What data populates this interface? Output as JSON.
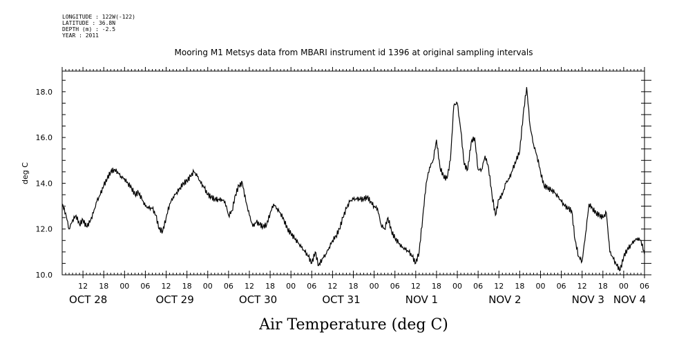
{
  "metadata": {
    "longitude": "LONGITUDE : 122W(-122)",
    "latitude": "LATITUDE : 36.8N",
    "depth": "DEPTH (m) : -2.5",
    "year": "YEAR : 2011"
  },
  "chart_data": {
    "type": "line",
    "title": "Mooring M1 Metsys data from MBARI instrument id 1396 at original sampling intervals",
    "xlabel": "Air Temperature (deg C)",
    "ylabel": "deg C",
    "ylim": [
      10.0,
      18.9
    ],
    "xlim_hours": [
      0,
      168
    ],
    "x_unit": "hours since 2011-10-27 06:00",
    "y_ticks": [
      "10.0",
      "12.0",
      "14.0",
      "16.0",
      "18.0"
    ],
    "y_tick_values": [
      10,
      12,
      14,
      16,
      18
    ],
    "x_hour_ticks": [
      {
        "h": 6,
        "label": "12"
      },
      {
        "h": 12,
        "label": "18"
      },
      {
        "h": 18,
        "label": "00"
      },
      {
        "h": 24,
        "label": "06"
      },
      {
        "h": 30,
        "label": "12"
      },
      {
        "h": 36,
        "label": "18"
      },
      {
        "h": 42,
        "label": "00"
      },
      {
        "h": 48,
        "label": "06"
      },
      {
        "h": 54,
        "label": "12"
      },
      {
        "h": 60,
        "label": "18"
      },
      {
        "h": 66,
        "label": "00"
      },
      {
        "h": 72,
        "label": "06"
      },
      {
        "h": 78,
        "label": "12"
      },
      {
        "h": 84,
        "label": "18"
      },
      {
        "h": 90,
        "label": "00"
      },
      {
        "h": 96,
        "label": "06"
      },
      {
        "h": 102,
        "label": "12"
      },
      {
        "h": 108,
        "label": "18"
      },
      {
        "h": 114,
        "label": "00"
      },
      {
        "h": 120,
        "label": "06"
      },
      {
        "h": 126,
        "label": "12"
      },
      {
        "h": 132,
        "label": "18"
      },
      {
        "h": 138,
        "label": "00"
      },
      {
        "h": 144,
        "label": "06"
      },
      {
        "h": 150,
        "label": "12"
      },
      {
        "h": 156,
        "label": "18"
      },
      {
        "h": 162,
        "label": "00"
      },
      {
        "h": 168,
        "label": "06"
      }
    ],
    "x_day_labels": [
      {
        "h": 2,
        "label": "OCT 28"
      },
      {
        "h": 27,
        "label": "OCT 29"
      },
      {
        "h": 51,
        "label": "OCT 30"
      },
      {
        "h": 75,
        "label": "OCT 31"
      },
      {
        "h": 99,
        "label": "NOV  1"
      },
      {
        "h": 123,
        "label": "NOV  2"
      },
      {
        "h": 147,
        "label": "NOV  3"
      },
      {
        "h": 159,
        "label": "NOV  4"
      }
    ],
    "series": [
      {
        "name": "Air Temperature",
        "x": [
          0,
          1,
          2,
          3,
          4,
          5,
          6,
          7,
          8,
          9,
          10,
          11,
          12,
          13,
          14,
          15,
          16,
          17,
          18,
          19,
          20,
          21,
          22,
          23,
          24,
          25,
          26,
          27,
          28,
          29,
          30,
          31,
          32,
          33,
          34,
          35,
          36,
          37,
          38,
          39,
          40,
          41,
          42,
          43,
          44,
          45,
          46,
          47,
          48,
          49,
          50,
          51,
          52,
          53,
          54,
          55,
          56,
          57,
          58,
          59,
          60,
          61,
          62,
          63,
          64,
          65,
          66,
          67,
          68,
          69,
          70,
          71,
          72,
          73,
          74,
          75,
          76,
          77,
          78,
          79,
          80,
          81,
          82,
          83,
          84,
          85,
          86,
          87,
          88,
          89,
          90,
          91,
          92,
          93,
          94,
          95,
          96,
          97,
          98,
          99,
          100,
          101,
          102,
          103,
          104,
          105,
          106,
          107,
          108,
          109,
          110,
          111,
          112,
          113,
          114,
          115,
          116,
          117,
          118,
          119,
          120,
          121,
          122,
          123,
          124,
          125,
          126,
          127,
          128,
          129,
          130,
          131,
          132,
          133,
          134,
          135,
          136,
          137,
          138,
          139,
          140,
          141,
          142,
          143,
          144,
          145,
          146,
          147,
          148,
          149,
          150,
          151,
          152,
          153,
          154,
          155,
          156,
          157,
          158,
          159,
          160,
          161,
          162,
          163,
          164,
          165,
          166,
          167,
          168
        ],
        "y": [
          13.1,
          12.7,
          12.0,
          12.4,
          12.6,
          12.2,
          12.4,
          12.1,
          12.3,
          12.7,
          13.2,
          13.5,
          13.9,
          14.2,
          14.5,
          14.6,
          14.5,
          14.3,
          14.2,
          14.0,
          13.8,
          13.5,
          13.6,
          13.3,
          13.0,
          12.9,
          12.9,
          12.6,
          12.0,
          11.9,
          12.5,
          13.1,
          13.4,
          13.6,
          13.8,
          14.0,
          14.1,
          14.3,
          14.5,
          14.3,
          14.0,
          13.8,
          13.5,
          13.4,
          13.3,
          13.3,
          13.3,
          13.2,
          12.6,
          12.8,
          13.5,
          13.9,
          14.0,
          13.2,
          12.6,
          12.1,
          12.3,
          12.2,
          12.1,
          12.2,
          12.7,
          13.1,
          12.9,
          12.7,
          12.4,
          12.0,
          11.8,
          11.6,
          11.4,
          11.2,
          11.0,
          10.8,
          10.5,
          11.0,
          10.4,
          10.7,
          10.9,
          11.2,
          11.5,
          11.7,
          12.0,
          12.5,
          12.9,
          13.2,
          13.3,
          13.3,
          13.3,
          13.3,
          13.4,
          13.2,
          13.0,
          12.9,
          12.2,
          12.0,
          12.5,
          11.9,
          11.6,
          11.4,
          11.2,
          11.1,
          11.0,
          10.8,
          10.5,
          11.0,
          12.5,
          14.0,
          14.7,
          15.0,
          15.9,
          14.7,
          14.3,
          14.2,
          15.0,
          17.4,
          17.5,
          16.3,
          14.8,
          14.6,
          15.8,
          16.0,
          14.6,
          14.6,
          15.2,
          14.7,
          13.5,
          12.6,
          13.3,
          13.5,
          14.0,
          14.2,
          14.6,
          15.0,
          15.4,
          17.0,
          18.2,
          16.5,
          15.7,
          15.2,
          14.5,
          13.9,
          13.8,
          13.7,
          13.6,
          13.4,
          13.2,
          13.0,
          12.9,
          12.8,
          11.5,
          10.8,
          10.6,
          11.8,
          13.1,
          12.9,
          12.7,
          12.6,
          12.5,
          12.7,
          11.0,
          10.7,
          10.4,
          10.2,
          10.8,
          11.1,
          11.3,
          11.5,
          11.6,
          11.5,
          10.9
        ]
      }
    ]
  }
}
